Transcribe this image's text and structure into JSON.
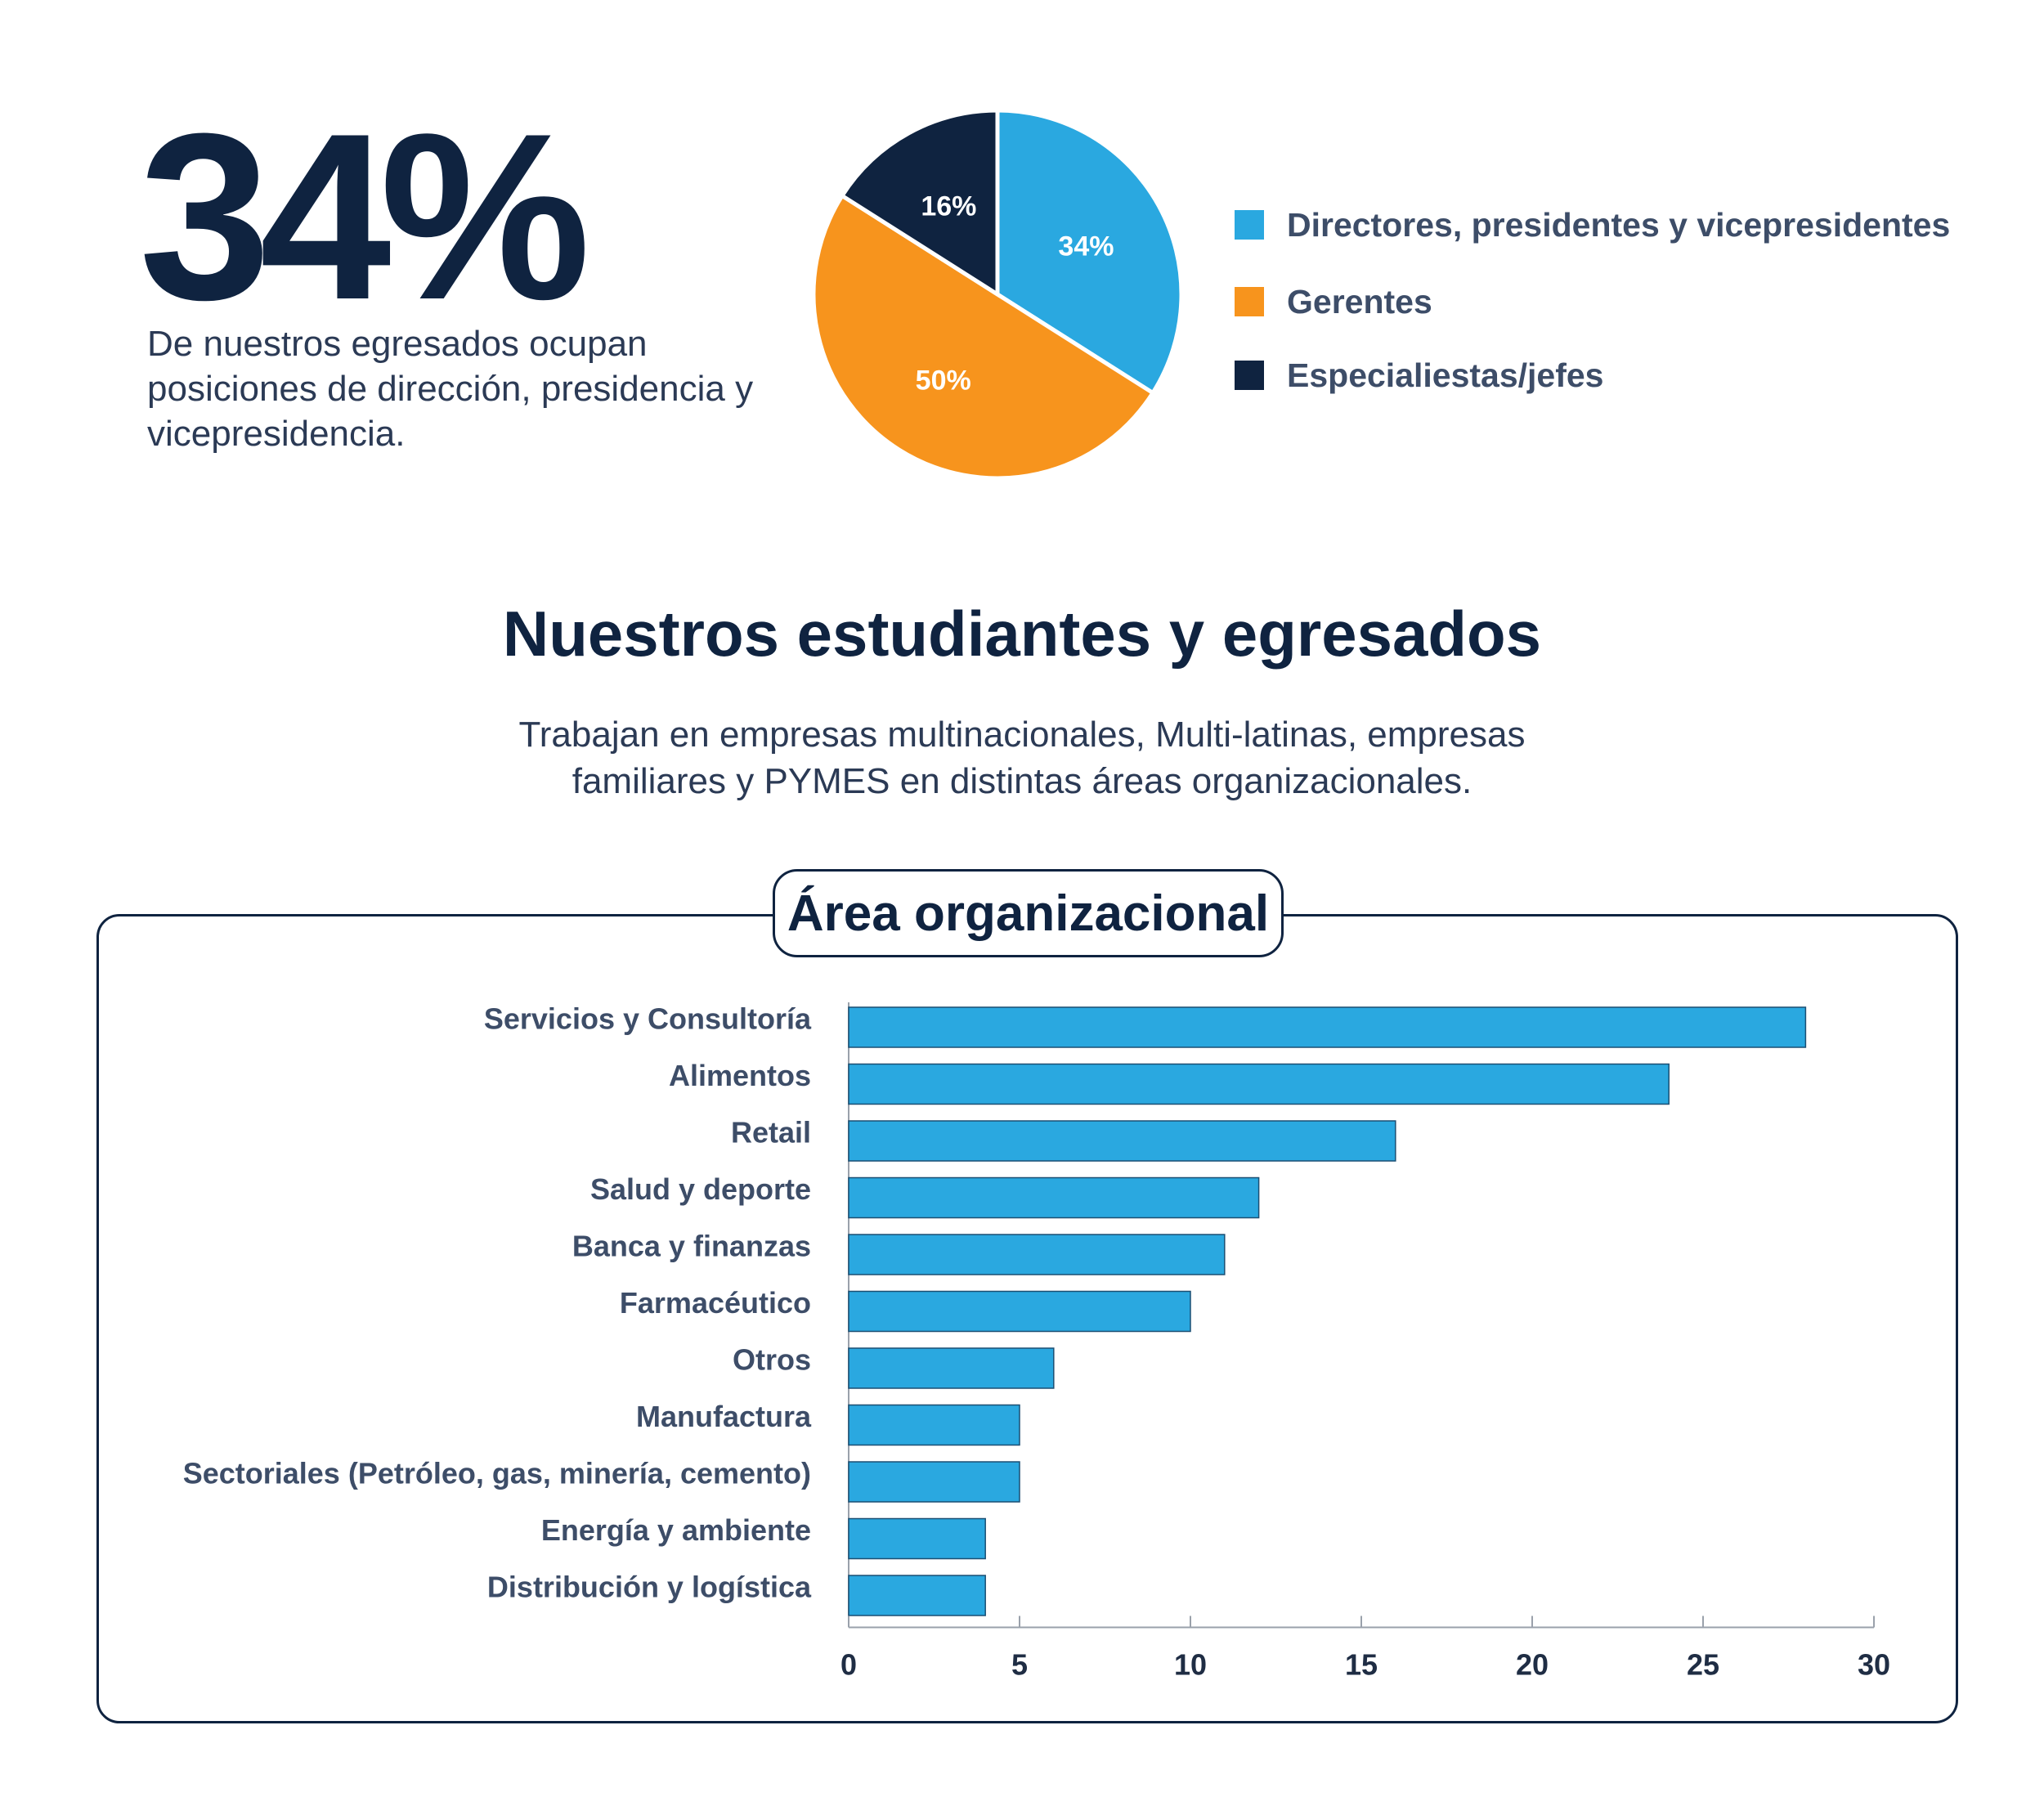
{
  "headline": {
    "value": "34%",
    "description": "De nuestros egresados ocupan posiciones de dirección, presidencia y vicepresidencia."
  },
  "section": {
    "title": "Nuestros estudiantes y egresados",
    "subtitle_line1": "Trabajan en empresas multinacionales, Multi-latinas, empresas",
    "subtitle_line2": "familiares y PYMES en distintas áreas organizacionales."
  },
  "chart_data": [
    {
      "type": "pie",
      "slices": [
        {
          "label": "Directores, presidentes y vicepresidentes",
          "value": 34,
          "display": "34%",
          "color": "#2aa8e0"
        },
        {
          "label": "Gerentes",
          "value": 50,
          "display": "50%",
          "color": "#f7941d"
        },
        {
          "label": "Especialiestas/jefes",
          "value": 16,
          "display": "16%",
          "color": "#0f2340"
        }
      ],
      "legend_position": "right"
    },
    {
      "type": "bar",
      "orientation": "horizontal",
      "title": "Área organizacional",
      "categories": [
        "Servicios y Consultoría",
        "Alimentos",
        "Retail",
        "Salud y deporte",
        "Banca y finanzas",
        "Farmacéutico",
        "Otros",
        "Manufactura",
        "Sectoriales (Petróleo, gas, minería, cemento)",
        "Energía y ambiente",
        "Distribución y logística"
      ],
      "values": [
        28,
        24,
        16,
        12,
        11,
        10,
        6,
        5,
        5,
        4,
        4
      ],
      "xlim": [
        0,
        30
      ],
      "xticks": [
        0,
        5,
        10,
        15,
        20,
        25,
        30
      ],
      "bar_color": "#2aa8e0",
      "grid": false
    }
  ]
}
